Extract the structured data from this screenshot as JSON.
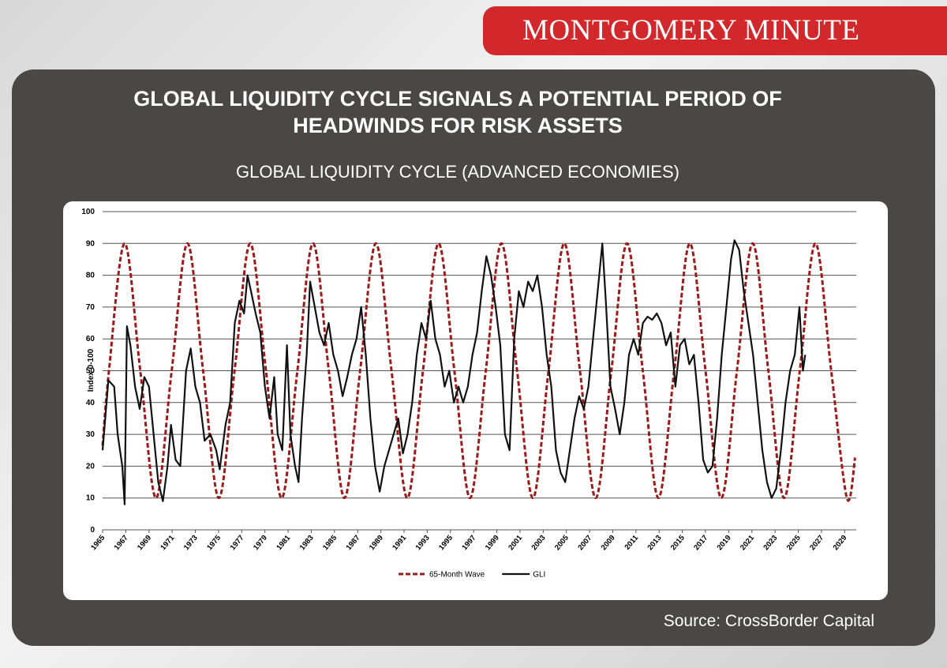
{
  "banner": "MONTGOMERY MINUTE",
  "headline": "GLOBAL LIQUIDITY CYCLE SIGNALS A POTENTIAL PERIOD OF HEADWINDS FOR RISK ASSETS",
  "source": "Source: CrossBorder Capital",
  "chart_data": {
    "type": "line",
    "title": "GLOBAL LIQUIDITY CYCLE (ADVANCED ECONOMIES)",
    "y_label": "Index 0-100",
    "xlim": [
      1965,
      2030
    ],
    "xticks": [
      1965,
      1967,
      1969,
      1971,
      1973,
      1975,
      1977,
      1979,
      1981,
      1983,
      1985,
      1987,
      1989,
      1991,
      1993,
      1995,
      1997,
      1999,
      2001,
      2003,
      2005,
      2007,
      2009,
      2011,
      2013,
      2015,
      2017,
      2019,
      2021,
      2023,
      2025,
      2027,
      2029
    ],
    "ylim": [
      0,
      100
    ],
    "yticks": [
      0,
      10,
      20,
      30,
      40,
      50,
      60,
      70,
      80,
      90,
      100
    ],
    "grid": true,
    "legend": "bottom",
    "series": [
      {
        "name": "65-Month Wave",
        "color": "#9b1b1b",
        "dashed": true,
        "smooth": true,
        "x": [
          1965,
          1965.55,
          1966.9,
          1968.25,
          1969.61,
          1970.96,
          1972.32,
          1973.67,
          1975.03,
          1976.38,
          1977.73,
          1979.09,
          1980.44,
          1981.8,
          1983.15,
          1984.51,
          1985.86,
          1987.21,
          1988.57,
          1989.92,
          1991.28,
          1992.63,
          1993.98,
          1995.34,
          1996.69,
          1998.05,
          1999.4,
          2000.75,
          2002.11,
          2003.46,
          2004.82,
          2006.17,
          2007.53,
          2008.88,
          2010.23,
          2011.59,
          2012.94,
          2014.3,
          2015.65,
          2017.0,
          2018.36,
          2019.71,
          2021.07,
          2022.42,
          2023.78,
          2025.13,
          2026.48,
          2027.84,
          2029.19,
          2029.9
        ],
        "values": [
          26.5,
          50,
          90,
          50,
          10,
          50,
          90,
          50,
          10,
          50,
          90,
          50,
          10,
          50,
          90,
          50,
          10,
          50,
          90,
          50,
          10,
          50,
          90,
          50,
          10,
          50,
          90,
          50,
          10,
          50,
          90,
          50,
          10,
          50,
          90,
          50,
          10,
          50,
          90,
          50,
          10,
          50,
          90,
          50,
          10,
          50,
          90,
          50,
          10,
          22.7
        ]
      },
      {
        "name": "GLI",
        "color": "#111111",
        "dashed": false,
        "smooth": false,
        "x": [
          1965.0,
          1965.5,
          1966.0,
          1966.3,
          1966.7,
          1966.9,
          1967.1,
          1967.4,
          1967.8,
          1968.2,
          1968.6,
          1969.0,
          1969.4,
          1969.8,
          1970.2,
          1970.6,
          1970.9,
          1971.3,
          1971.7,
          1972.2,
          1972.6,
          1973.0,
          1973.4,
          1973.8,
          1974.3,
          1974.8,
          1975.1,
          1975.6,
          1976.0,
          1976.4,
          1976.8,
          1977.2,
          1977.5,
          1977.8,
          1978.2,
          1978.6,
          1979.0,
          1979.4,
          1979.8,
          1980.1,
          1980.5,
          1980.9,
          1981.2,
          1981.6,
          1981.9,
          1982.2,
          1982.6,
          1982.9,
          1983.3,
          1983.7,
          1984.1,
          1984.5,
          1984.9,
          1985.3,
          1985.7,
          1986.1,
          1986.5,
          1986.9,
          1987.3,
          1987.7,
          1988.1,
          1988.5,
          1988.9,
          1989.3,
          1989.7,
          1990.1,
          1990.5,
          1990.9,
          1991.3,
          1991.7,
          1992.1,
          1992.5,
          1992.9,
          1993.3,
          1993.7,
          1994.1,
          1994.5,
          1994.9,
          1995.3,
          1995.7,
          1996.1,
          1996.5,
          1996.9,
          1997.3,
          1997.7,
          1998.1,
          1998.5,
          1998.9,
          1999.3,
          1999.7,
          2000.1,
          2000.5,
          2000.9,
          2001.3,
          2001.7,
          2002.1,
          2002.5,
          2002.9,
          2003.3,
          2003.7,
          2004.1,
          2004.5,
          2004.9,
          2005.3,
          2005.7,
          2006.1,
          2006.5,
          2006.9,
          2007.3,
          2007.7,
          2008.1,
          2008.4,
          2008.8,
          2009.2,
          2009.6,
          2010.0,
          2010.4,
          2010.8,
          2011.2,
          2011.6,
          2012.0,
          2012.4,
          2012.8,
          2013.2,
          2013.6,
          2014.0,
          2014.4,
          2014.8,
          2015.2,
          2015.6,
          2016.0,
          2016.4,
          2016.8,
          2017.2,
          2017.6,
          2018.0,
          2018.4,
          2018.8,
          2019.2,
          2019.5,
          2019.9,
          2020.3,
          2020.7,
          2021.1,
          2021.5,
          2021.9,
          2022.3,
          2022.7,
          2023.1,
          2023.5,
          2023.9,
          2024.3,
          2024.7,
          2025.1,
          2025.4,
          2025.6
        ],
        "values": [
          25,
          47,
          45,
          30,
          20,
          8,
          64,
          58,
          45,
          38,
          48,
          45,
          30,
          15,
          9,
          20,
          33,
          22,
          20,
          50,
          57,
          45,
          40,
          28,
          30,
          25,
          19,
          33,
          40,
          65,
          72,
          68,
          80,
          75,
          68,
          62,
          45,
          35,
          48,
          30,
          25,
          58,
          30,
          20,
          15,
          35,
          55,
          78,
          70,
          62,
          58,
          65,
          55,
          50,
          42,
          48,
          55,
          60,
          70,
          55,
          35,
          20,
          12,
          20,
          25,
          30,
          35,
          24,
          30,
          40,
          55,
          65,
          60,
          72,
          60,
          55,
          45,
          50,
          40,
          45,
          40,
          45,
          55,
          62,
          75,
          86,
          80,
          70,
          58,
          30,
          25,
          60,
          75,
          70,
          78,
          75,
          80,
          70,
          55,
          45,
          25,
          18,
          15,
          25,
          35,
          42,
          38,
          45,
          60,
          75,
          90,
          72,
          45,
          38,
          30,
          40,
          55,
          60,
          55,
          65,
          67,
          66,
          68,
          65,
          58,
          62,
          45,
          58,
          60,
          52,
          55,
          40,
          22,
          18,
          20,
          35,
          55,
          70,
          85,
          91,
          88,
          75,
          65,
          55,
          40,
          25,
          15,
          10,
          13,
          25,
          40,
          50,
          55,
          70,
          50,
          55
        ]
      }
    ]
  }
}
